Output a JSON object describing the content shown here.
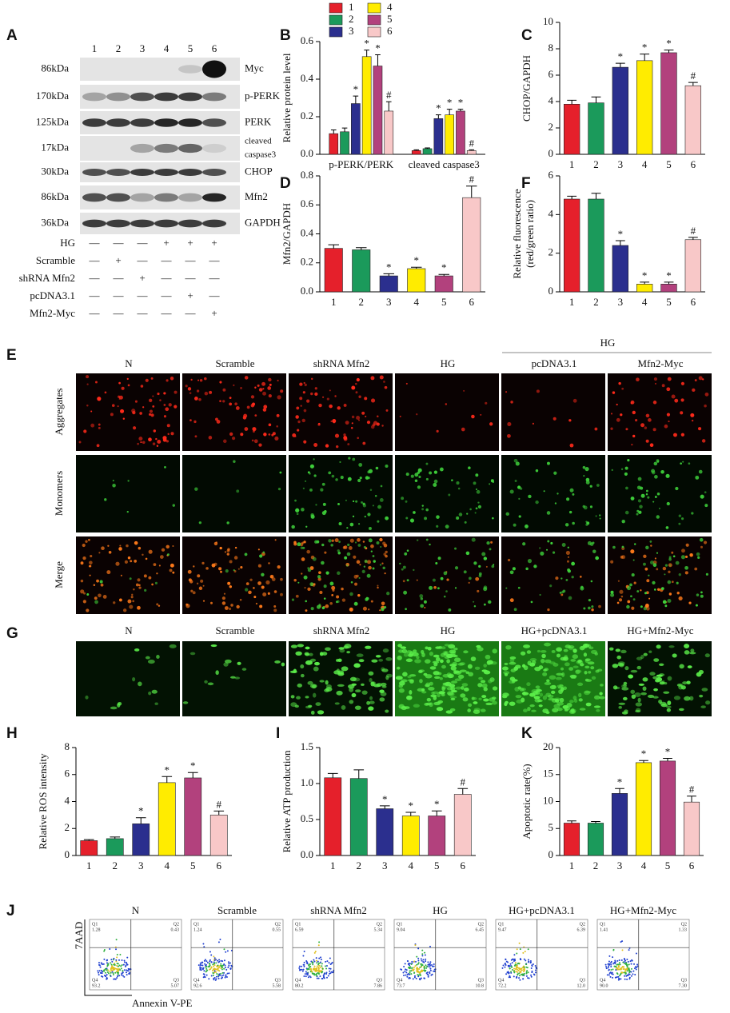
{
  "chart_data": [
    {
      "type": "bar",
      "panel": "B",
      "ylabel": "Relative protein level",
      "categories": [
        "p-PERK/PERK",
        "cleaved caspase3"
      ],
      "ylim": [
        0,
        0.6
      ],
      "yticks": [
        {
          "value": 0,
          "label": "0.0"
        },
        0.2,
        0.4,
        0.6
      ],
      "series": [
        {
          "name": "1",
          "color": "#e5202b",
          "values": [
            0.11,
            0.02
          ],
          "errors": [
            0.02,
            0.004
          ],
          "annotations": [
            null,
            null
          ]
        },
        {
          "name": "2",
          "color": "#1b9a5b",
          "values": [
            0.12,
            0.03
          ],
          "errors": [
            0.02,
            0.004
          ],
          "annotations": [
            null,
            null
          ]
        },
        {
          "name": "3",
          "color": "#2b2f8e",
          "values": [
            0.27,
            0.19
          ],
          "errors": [
            0.04,
            0.02
          ],
          "annotations": [
            "*",
            "*"
          ]
        },
        {
          "name": "4",
          "color": "#ffec00",
          "values": [
            0.52,
            0.21
          ],
          "errors": [
            0.035,
            0.03
          ],
          "annotations": [
            "*",
            "*"
          ]
        },
        {
          "name": "5",
          "color": "#b2417d",
          "values": [
            0.47,
            0.23
          ],
          "errors": [
            0.06,
            0.01
          ],
          "annotations": [
            "*",
            "*"
          ]
        },
        {
          "name": "6",
          "color": "#f8c8c8",
          "values": [
            0.23,
            0.02
          ],
          "errors": [
            0.05,
            0.004
          ],
          "annotations": [
            "#",
            "#"
          ]
        }
      ]
    },
    {
      "type": "bar",
      "panel": "C",
      "ylabel": "CHOP/GAPDH",
      "categories": [
        "1",
        "2",
        "3",
        "4",
        "5",
        "6"
      ],
      "ylim": [
        0,
        10
      ],
      "yticks": [
        0,
        2,
        4,
        6,
        8,
        10
      ],
      "colors": [
        "#e5202b",
        "#1b9a5b",
        "#2b2f8e",
        "#ffec00",
        "#b2417d",
        "#f8c8c8"
      ],
      "values": [
        3.8,
        3.9,
        6.6,
        7.1,
        7.7,
        5.2
      ],
      "errors": [
        0.3,
        0.45,
        0.3,
        0.5,
        0.2,
        0.25
      ],
      "annotations": [
        null,
        null,
        "*",
        "*",
        "*",
        "#"
      ]
    },
    {
      "type": "bar",
      "panel": "D",
      "ylabel": "Mfn2/GAPDH",
      "categories": [
        "1",
        "2",
        "3",
        "4",
        "5",
        "6"
      ],
      "ylim": [
        0,
        0.8
      ],
      "yticks": [
        {
          "value": 0,
          "label": "0.0"
        },
        0.2,
        0.4,
        0.6,
        0.8
      ],
      "colors": [
        "#e5202b",
        "#1b9a5b",
        "#2b2f8e",
        "#ffec00",
        "#b2417d",
        "#f8c8c8"
      ],
      "values": [
        0.3,
        0.29,
        0.11,
        0.16,
        0.11,
        0.65
      ],
      "errors": [
        0.025,
        0.015,
        0.015,
        0.01,
        0.01,
        0.08
      ],
      "annotations": [
        null,
        null,
        "*",
        "*",
        "*",
        "#"
      ]
    },
    {
      "type": "bar",
      "panel": "F",
      "ylabel": [
        "Relative fluorescence",
        "(red/green ratio)"
      ],
      "categories": [
        "1",
        "2",
        "3",
        "4",
        "5",
        "6"
      ],
      "ylim": [
        0,
        6
      ],
      "yticks": [
        0,
        2,
        4,
        6
      ],
      "colors": [
        "#e5202b",
        "#1b9a5b",
        "#2b2f8e",
        "#ffec00",
        "#b2417d",
        "#f8c8c8"
      ],
      "values": [
        4.8,
        4.8,
        2.4,
        0.4,
        0.4,
        2.7
      ],
      "errors": [
        0.15,
        0.3,
        0.25,
        0.1,
        0.1,
        0.12
      ],
      "annotations": [
        null,
        null,
        "*",
        "*",
        "*",
        "#"
      ]
    },
    {
      "type": "bar",
      "panel": "H",
      "ylabel": "Relative ROS intensity",
      "categories": [
        "1",
        "2",
        "3",
        "4",
        "5",
        "6"
      ],
      "ylim": [
        0,
        8
      ],
      "yticks": [
        0,
        2,
        4,
        6,
        8
      ],
      "colors": [
        "#e5202b",
        "#1b9a5b",
        "#2b2f8e",
        "#ffec00",
        "#b2417d",
        "#f8c8c8"
      ],
      "values": [
        1.1,
        1.25,
        2.35,
        5.4,
        5.75,
        3.0
      ],
      "errors": [
        0.08,
        0.12,
        0.45,
        0.45,
        0.4,
        0.3
      ],
      "annotations": [
        null,
        null,
        "*",
        "*",
        "*",
        "#"
      ]
    },
    {
      "type": "bar",
      "panel": "I",
      "ylabel": "Relative ATP production",
      "categories": [
        "1",
        "2",
        "3",
        "4",
        "5",
        "6"
      ],
      "ylim": [
        0,
        1.5
      ],
      "yticks": [
        {
          "value": 0,
          "label": "0.0"
        },
        0.5,
        {
          "value": 1,
          "label": "1.0"
        },
        1.5
      ],
      "colors": [
        "#e5202b",
        "#1b9a5b",
        "#2b2f8e",
        "#ffec00",
        "#b2417d",
        "#f8c8c8"
      ],
      "values": [
        1.08,
        1.07,
        0.65,
        0.55,
        0.55,
        0.85
      ],
      "errors": [
        0.06,
        0.12,
        0.04,
        0.05,
        0.07,
        0.08
      ],
      "annotations": [
        null,
        null,
        "*",
        "*",
        "*",
        "#"
      ]
    },
    {
      "type": "bar",
      "panel": "K",
      "ylabel": "Apoptotic rate(%)",
      "categories": [
        "1",
        "2",
        "3",
        "4",
        "5",
        "6"
      ],
      "ylim": [
        0,
        20
      ],
      "yticks": [
        0,
        5,
        10,
        15,
        20
      ],
      "colors": [
        "#e5202b",
        "#1b9a5b",
        "#2b2f8e",
        "#ffec00",
        "#b2417d",
        "#f8c8c8"
      ],
      "values": [
        6,
        6,
        11.5,
        17.2,
        17.5,
        9.9
      ],
      "errors": [
        0.4,
        0.3,
        0.9,
        0.4,
        0.5,
        1.1
      ],
      "annotations": [
        null,
        null,
        "*",
        "*",
        "*",
        "#"
      ]
    }
  ],
  "blot": {
    "panel": "A",
    "lanes": [
      "1",
      "2",
      "3",
      "4",
      "5",
      "6"
    ],
    "rows": [
      {
        "weight": "86kDa",
        "protein": "Myc"
      },
      {
        "weight": "170kDa",
        "protein": "p-PERK"
      },
      {
        "weight": "125kDa",
        "protein": "PERK"
      },
      {
        "weight": "17kDa",
        "protein": [
          "cleaved",
          "caspase3"
        ]
      },
      {
        "weight": "30kDa",
        "protein": "CHOP"
      },
      {
        "weight": "86kDa",
        "protein": "Mfn2"
      },
      {
        "weight": "36kDa",
        "protein": "GAPDH"
      }
    ],
    "treatments": [
      {
        "label": "HG",
        "signs": [
          "—",
          "—",
          "—",
          "+",
          "+",
          "+"
        ]
      },
      {
        "label": "Scramble",
        "signs": [
          "—",
          "+",
          "—",
          "—",
          "—",
          "—"
        ]
      },
      {
        "label": "shRNA Mfn2",
        "signs": [
          "—",
          "—",
          "+",
          "—",
          "—",
          "—"
        ]
      },
      {
        "label": "pcDNA3.1",
        "signs": [
          "—",
          "—",
          "—",
          "—",
          "+",
          "—"
        ]
      },
      {
        "label": "Mfn2-Myc",
        "signs": [
          "—",
          "—",
          "—",
          "—",
          "—",
          "+"
        ]
      }
    ]
  },
  "panel_e": {
    "panel": "E",
    "group": "HG",
    "columns": [
      "N",
      "Scramble",
      "shRNA Mfn2",
      "HG",
      "pcDNA3.1",
      "Mfn2-Myc"
    ],
    "rows": [
      "Aggregates",
      "Monomers",
      "Merge"
    ]
  },
  "panel_g": {
    "panel": "G",
    "columns": [
      "N",
      "Scramble",
      "shRNA Mfn2",
      "HG",
      "HG+pcDNA3.1",
      "HG+Mfn2-Myc"
    ]
  },
  "panel_j": {
    "panel": "J",
    "y_label": "7AAD",
    "x_label": "Annexin V-PE",
    "quadrant_names": [
      "Q1",
      "Q2",
      "Q3",
      "Q4"
    ],
    "plots": [
      {
        "title": "N",
        "quadrants": [
          "1.28",
          "0.43",
          "5.07",
          "93.2"
        ]
      },
      {
        "title": "Scramble",
        "quadrants": [
          "1.24",
          "0.55",
          "5.58",
          "92.6"
        ]
      },
      {
        "title": "shRNA Mfn2",
        "quadrants": [
          "6.59",
          "5.34",
          "7.86",
          "80.2"
        ]
      },
      {
        "title": "HG",
        "quadrants": [
          "9.04",
          "6.45",
          "10.8",
          "73.7"
        ]
      },
      {
        "title": "HG+pcDNA3.1",
        "quadrants": [
          "9.47",
          "6.39",
          "12.0",
          "72.2"
        ]
      },
      {
        "title": "HG+Mfn2-Myc",
        "quadrants": [
          "1.41",
          "1.33",
          "7.30",
          "90.0"
        ]
      }
    ]
  }
}
